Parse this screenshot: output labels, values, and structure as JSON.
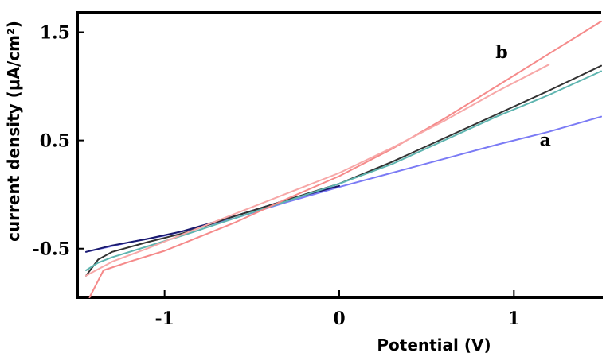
{
  "chart_data": {
    "type": "line",
    "xlabel": "Potential (V)",
    "ylabel": "current density (μA/cm²)",
    "xlim": [
      -1.5,
      1.5
    ],
    "ylim": [
      -0.95,
      1.68
    ],
    "xticks": [
      {
        "value": -1,
        "label": "-1"
      },
      {
        "value": 0,
        "label": "0"
      },
      {
        "value": 1,
        "label": "1"
      }
    ],
    "yticks": [
      {
        "value": -0.5,
        "label": "-0.5"
      },
      {
        "value": 0.5,
        "label": "0.5"
      },
      {
        "value": 1.5,
        "label": "1.5"
      }
    ],
    "grid": false,
    "annotations": [
      {
        "text": "a",
        "x": 1.18,
        "y": 0.45
      },
      {
        "text": "b",
        "x": 0.93,
        "y": 1.26
      }
    ],
    "series": [
      {
        "color": "#7b7bf5",
        "x": [
          -1.45,
          -1.2,
          -1.0,
          -0.6,
          -0.3,
          0,
          0.3,
          0.6,
          0.9,
          1.2,
          1.5
        ],
        "values": [
          -0.53,
          -0.44,
          -0.38,
          -0.22,
          -0.07,
          0.07,
          0.2,
          0.33,
          0.46,
          0.58,
          0.72
        ]
      },
      {
        "color": "#1a1a6e",
        "x": [
          -1.45,
          -1.3,
          -1.1,
          -0.9,
          -0.6,
          -0.3,
          0
        ],
        "values": [
          -0.53,
          -0.47,
          -0.41,
          -0.34,
          -0.2,
          -0.05,
          0.08
        ]
      },
      {
        "color": "#333333",
        "x": [
          -1.45,
          -1.38,
          -1.3,
          -1.1,
          -0.9,
          -0.6,
          -0.3,
          0,
          0.3,
          0.6,
          0.9,
          1.2,
          1.5
        ],
        "values": [
          -0.75,
          -0.6,
          -0.53,
          -0.44,
          -0.36,
          -0.2,
          -0.05,
          0.1,
          0.3,
          0.52,
          0.74,
          0.96,
          1.19
        ]
      },
      {
        "color": "#5fb5b0",
        "x": [
          -1.45,
          -1.38,
          -1.3,
          -1.1,
          -0.9,
          -0.6,
          -0.3,
          0,
          0.3,
          0.6,
          0.9,
          1.2,
          1.5
        ],
        "values": [
          -0.7,
          -0.63,
          -0.58,
          -0.48,
          -0.38,
          -0.22,
          -0.06,
          0.1,
          0.28,
          0.5,
          0.72,
          0.92,
          1.14
        ]
      },
      {
        "color": "#f58a8a",
        "x": [
          -1.43,
          -1.35,
          -1.2,
          -1.0,
          -0.6,
          -0.3,
          0,
          0.3,
          0.6,
          0.9,
          1.2,
          1.5
        ],
        "values": [
          -0.95,
          -0.7,
          -0.62,
          -0.52,
          -0.26,
          -0.04,
          0.17,
          0.42,
          0.7,
          1.0,
          1.3,
          1.6
        ]
      },
      {
        "color": "#f7a8a8",
        "x": [
          -1.45,
          -1.3,
          -1.1,
          -0.9,
          -0.6,
          -0.3,
          0,
          0.3,
          0.6,
          0.9,
          1.2
        ],
        "values": [
          -0.75,
          -0.62,
          -0.5,
          -0.37,
          -0.18,
          0.01,
          0.2,
          0.43,
          0.68,
          0.95,
          1.2
        ]
      }
    ]
  }
}
